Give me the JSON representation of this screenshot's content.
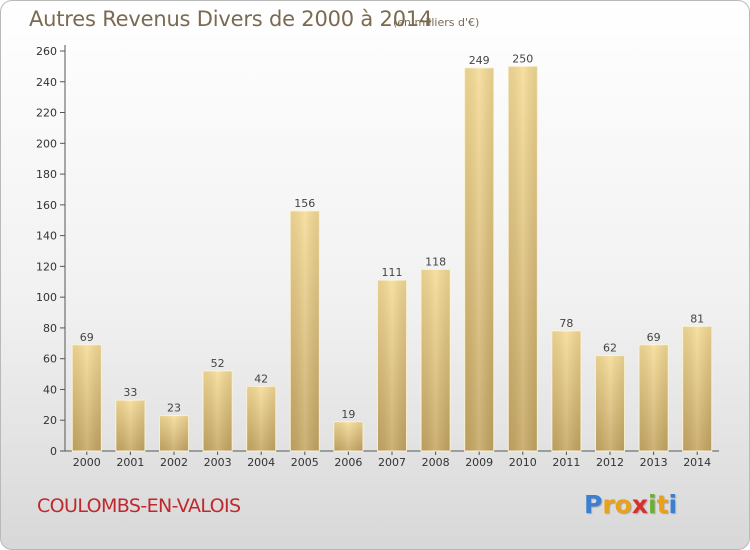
{
  "chart_data": {
    "type": "bar",
    "title": "Autres Revenus Divers de 2000 à 2014",
    "subtitle": "(en milliers d'€)",
    "categories": [
      "2000",
      "2001",
      "2002",
      "2003",
      "2004",
      "2005",
      "2006",
      "2007",
      "2008",
      "2009",
      "2010",
      "2011",
      "2012",
      "2013",
      "2014"
    ],
    "values": [
      69,
      33,
      23,
      52,
      42,
      156,
      19,
      111,
      118,
      249,
      250,
      78,
      62,
      69,
      81
    ],
    "ylim": [
      0,
      260
    ],
    "yticks": [
      0,
      20,
      40,
      60,
      80,
      100,
      120,
      140,
      160,
      180,
      200,
      220,
      240,
      260
    ],
    "xlabel": "",
    "ylabel": "",
    "grid": false,
    "legend": "none",
    "bar_color": "#f2d48a",
    "bar_color_dark": "#c4a55f"
  },
  "footer": {
    "place": "COULOMBS-EN-VALOIS",
    "brand": [
      "P",
      "r",
      "o",
      "x",
      "i",
      "t",
      "i"
    ]
  }
}
